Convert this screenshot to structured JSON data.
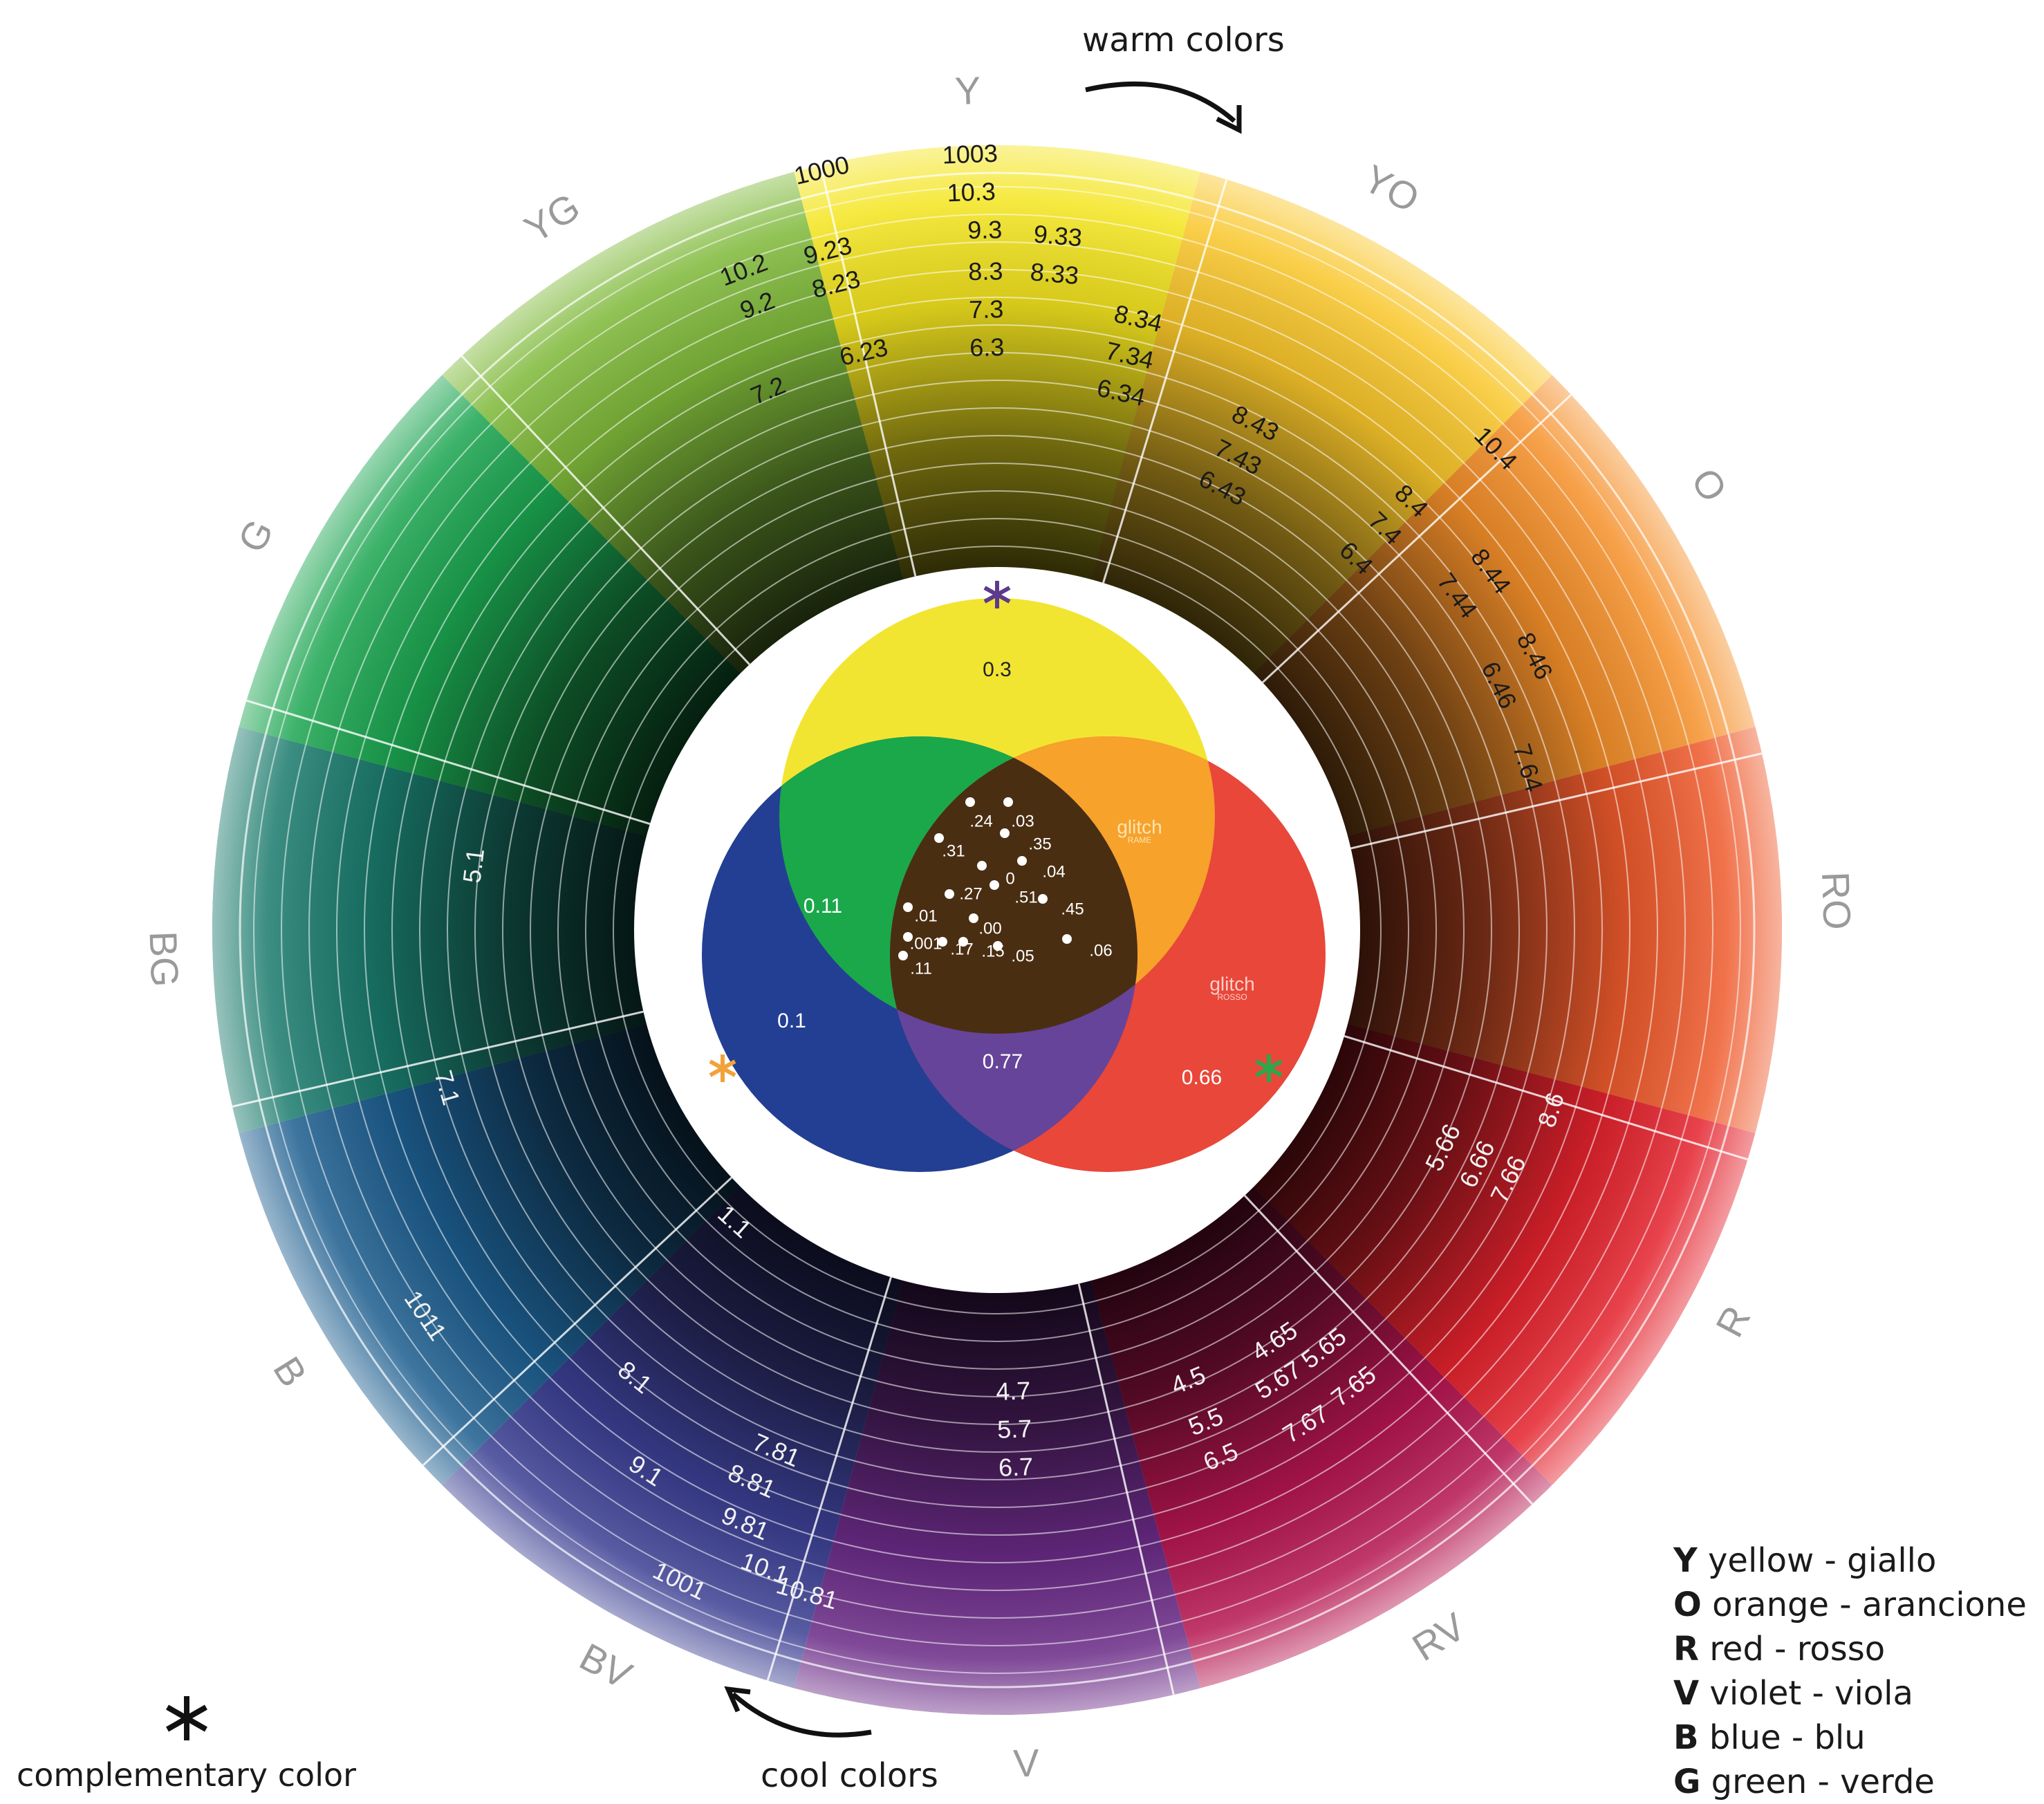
{
  "captions": {
    "warm": "warm colors",
    "cool": "cool colors",
    "complementary": "complementary color"
  },
  "hue_labels": [
    "Y",
    "YO",
    "O",
    "RO",
    "R",
    "RV",
    "V",
    "BV",
    "B",
    "BG",
    "G",
    "YG"
  ],
  "legend": [
    {
      "letter": "Y",
      "text": "yellow - giallo"
    },
    {
      "letter": "O",
      "text": "orange - arancione"
    },
    {
      "letter": "R",
      "text": "red - rosso"
    },
    {
      "letter": "V",
      "text": "violet -  viola"
    },
    {
      "letter": "B",
      "text": "blue -  blu"
    },
    {
      "letter": "G",
      "text": "green -  verde"
    }
  ],
  "sector_colors": {
    "Y": "#f4e51f",
    "YO": "#f9c62a",
    "O": "#f5902a",
    "RO": "#ee5a2c",
    "R": "#e4222d",
    "RV": "#b5154f",
    "V": "#6a2a86",
    "BV": "#3b3f92",
    "B": "#1c5d8e",
    "BG": "#1a7a6c",
    "G": "#1ba550",
    "YG": "#7fb93a"
  },
  "wheel_numbers": [
    "1003",
    "10.3",
    "9.3",
    "9.33",
    "8.3",
    "8.33",
    "7.3",
    "6.3",
    "1000",
    "10.2",
    "9.23",
    "9.2",
    "8.23",
    "7.2",
    "6.23",
    "8.34",
    "7.34",
    "6.34",
    "8.43",
    "7.43",
    "6.43",
    "10.4",
    "8.4",
    "7.4",
    "6.4",
    "8.44",
    "7.44",
    "8.46",
    "6.46",
    "7.64",
    "8.6",
    "5.66",
    "6.66",
    "7.66",
    "4.65",
    "5.65",
    "4.5",
    "5.67",
    "7.65",
    "5.5",
    "6.5",
    "7.67",
    "4.7",
    "5.7",
    "6.7",
    "8.1",
    "7.81",
    "9.1",
    "8.81",
    "9.81",
    "10.1",
    "10.81",
    "1001",
    "1011",
    "1.1",
    "7.1",
    "5.1"
  ],
  "venn": {
    "yellow": "0.3",
    "blue": "0.1",
    "red": "0.66",
    "green": "0.11",
    "violet": "0.77",
    "orange_logo": "glitch",
    "orange_logo_sub": "RAME",
    "red_logo": "glitch",
    "red_logo_sub": "ROSSO",
    "center_dots": [
      ".24",
      ".03",
      ".31",
      ".35",
      ".04",
      "0",
      ".27",
      ".51",
      ".45",
      ".01",
      ".00",
      ".001",
      ".17",
      ".15",
      ".05",
      ".06",
      ".11"
    ],
    "colors": {
      "yellow": "#f2e532",
      "blue": "#233f93",
      "red": "#e8473a",
      "green": "#1aa84a",
      "orange": "#f6a22b",
      "violet": "#66449a",
      "center": "#4a2e12"
    }
  }
}
